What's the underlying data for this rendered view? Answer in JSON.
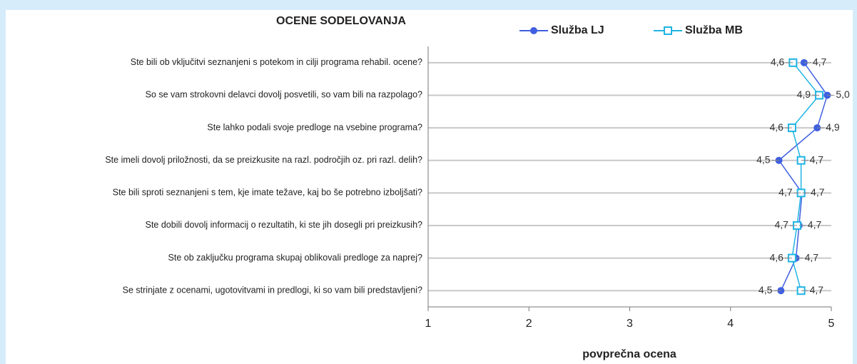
{
  "chart_data": {
    "type": "line",
    "orientation": "horizontal",
    "title": "OCENE  SODELOVANJA",
    "x_label": "povprečna ocena",
    "categories": [
      "Ste bili ob vključitvi seznanjeni s potekom in cilji programa rehabil. ocene?",
      "So se vam strokovni delavci dovolj posvetili, so vam bili na razpolago?",
      "Ste lahko podali svoje predloge na vsebine programa?",
      "Ste imeli dovolj priložnosti, da se preizkusite na razl. področjih oz. pri razl. delih?",
      "Ste bili sproti seznanjeni s tem, kje imate težave, kaj bo še potrebno izboljšati?",
      "Ste dobili dovolj informacij o rezultatih, ki ste jih dosegli pri preizkusih?",
      "Ste ob zaključku programa skupaj oblikovali predloge za naprej?",
      "Se strinjate z ocenami, ugotovitvami in predlogi, ki so vam bili predstavljeni?"
    ],
    "series": [
      {
        "name": "Služba LJ",
        "color": "#3f5fe0",
        "marker": "circle",
        "values": [
          4.73,
          4.96,
          4.86,
          4.48,
          4.71,
          4.68,
          4.65,
          4.5
        ],
        "value_labels": [
          "4,7",
          "5,0",
          "4,9",
          "4,5",
          "4,7",
          "4,7",
          "4,7",
          "4,5"
        ]
      },
      {
        "name": "Služba MB",
        "color": "#1fb4e4",
        "marker": "square",
        "values": [
          4.62,
          4.88,
          4.61,
          4.7,
          4.7,
          4.66,
          4.61,
          4.7
        ],
        "value_labels": [
          "4,6",
          "4,9",
          "4,6",
          "4,7",
          "4,7",
          "4,7",
          "4,6",
          "4,7"
        ]
      }
    ],
    "xlim": [
      1,
      5
    ],
    "xticks": [
      1,
      2,
      3,
      4,
      5
    ],
    "grid": true,
    "legend": "top"
  }
}
